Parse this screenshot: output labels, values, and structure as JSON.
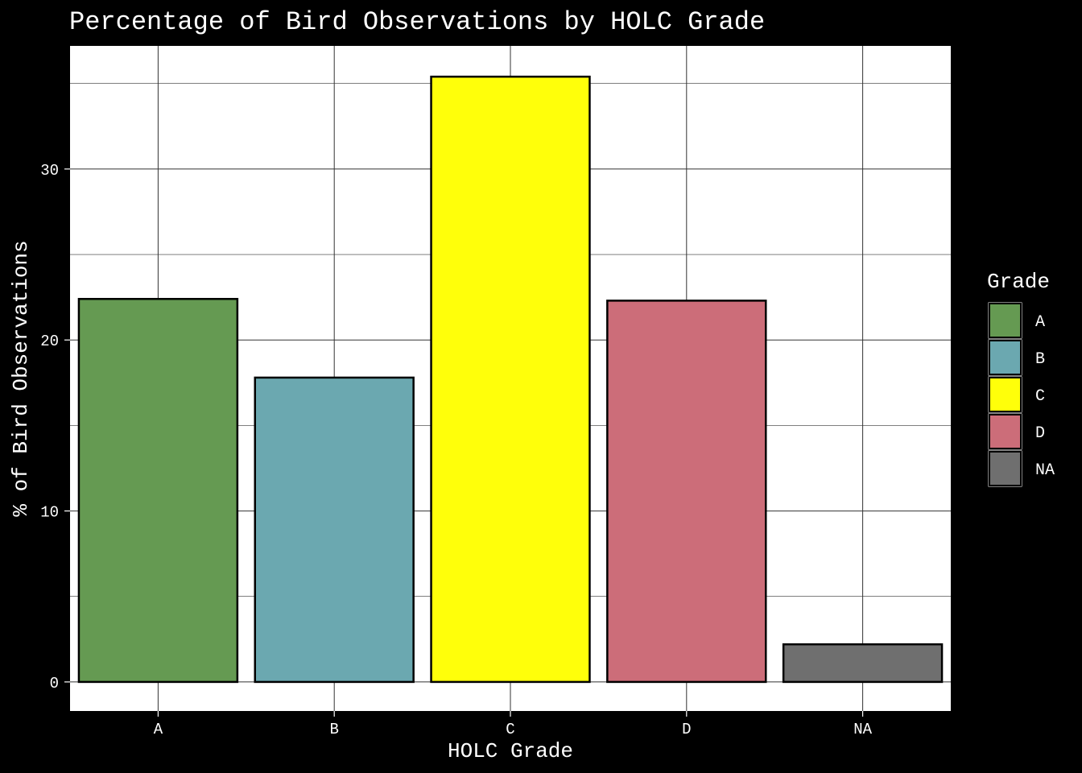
{
  "chart_data": {
    "type": "bar",
    "title": "Percentage of Bird Observations by HOLC Grade",
    "xlabel": "HOLC Grade",
    "ylabel": "% of Bird Observations",
    "categories": [
      "A",
      "B",
      "C",
      "D",
      "NA"
    ],
    "values": [
      22.4,
      17.8,
      35.4,
      22.3,
      2.2
    ],
    "colors": [
      "#659a52",
      "#6ba8b0",
      "#ffff0a",
      "#cc6d79",
      "#6f6f6f"
    ],
    "ylim": [
      -1.7,
      37.2
    ],
    "yticks": [
      0,
      10,
      20,
      30
    ],
    "yticks_minor": [
      5,
      15,
      25,
      35
    ],
    "grid": true,
    "legend": {
      "title": "Grade",
      "position": "right",
      "items": [
        "A",
        "B",
        "C",
        "D",
        "NA"
      ]
    }
  }
}
